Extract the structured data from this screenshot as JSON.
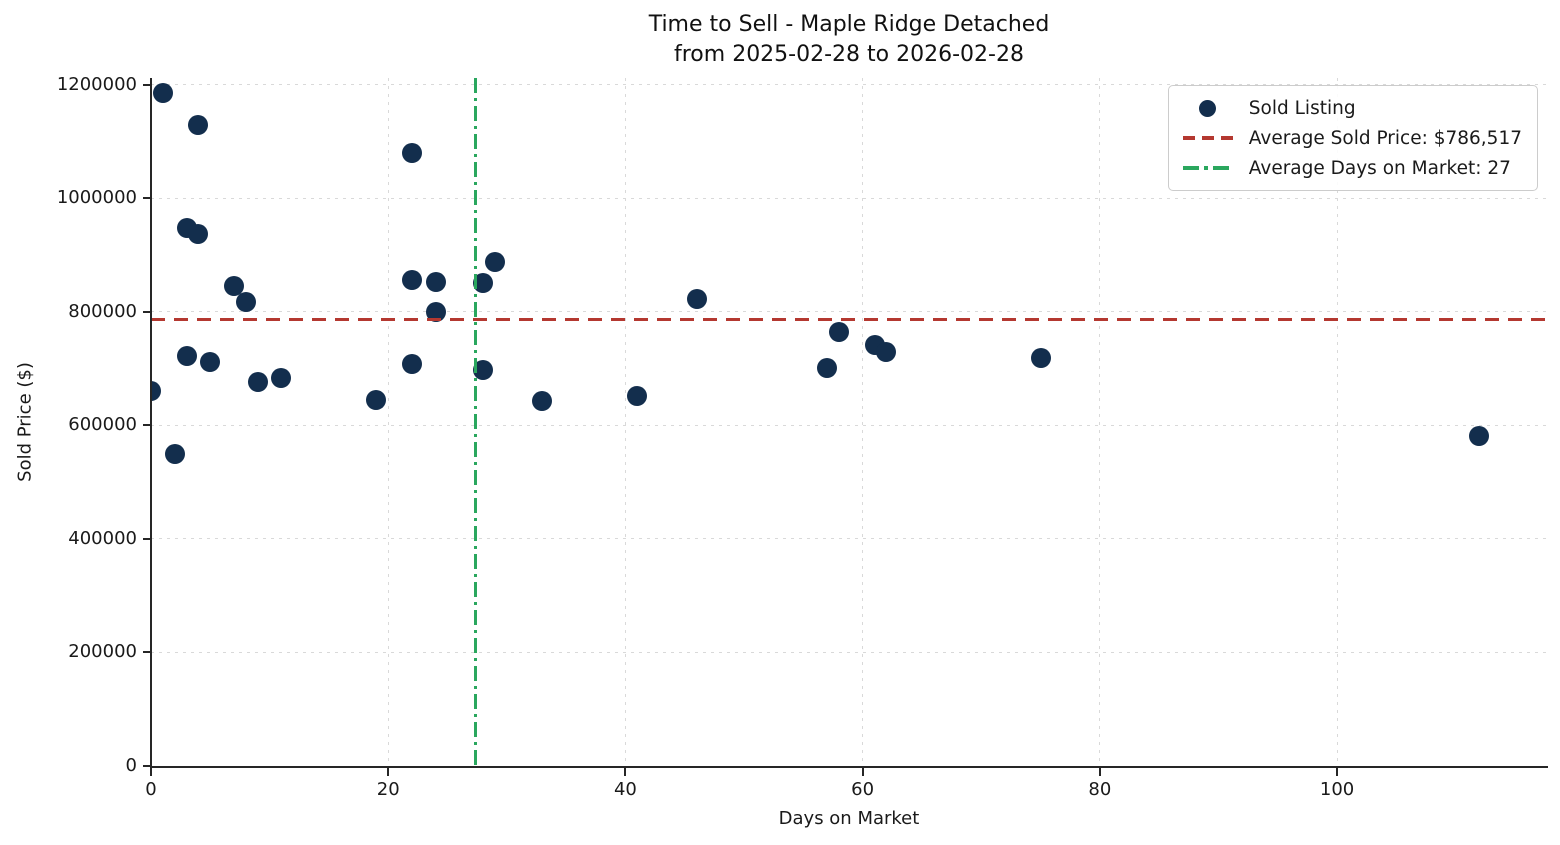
{
  "title": {
    "line1": "Time to Sell - Maple Ridge Detached",
    "line2": "from 2025-02-28 to 2026-02-28"
  },
  "chart_data": {
    "type": "scatter",
    "title": "Time to Sell - Maple Ridge Detached from 2025-02-28 to 2026-02-28",
    "xlabel": "Days on Market",
    "ylabel": "Sold Price ($)",
    "xlim": [
      0,
      117.7
    ],
    "ylim": [
      0,
      1212000
    ],
    "x_ticks": [
      0,
      20,
      40,
      60,
      80,
      100
    ],
    "y_ticks": [
      0,
      200000,
      400000,
      600000,
      800000,
      1000000,
      1200000
    ],
    "grid": true,
    "legend_position": "upper right",
    "series": [
      {
        "name": "Sold Listing",
        "type": "scatter",
        "color": "#132e4d",
        "points": [
          [
            0,
            660000
          ],
          [
            1,
            1185000
          ],
          [
            2,
            549000
          ],
          [
            3,
            948000
          ],
          [
            3,
            723000
          ],
          [
            4,
            1130000
          ],
          [
            4,
            938000
          ],
          [
            5,
            711000
          ],
          [
            7,
            845000
          ],
          [
            8,
            817000
          ],
          [
            9,
            677000
          ],
          [
            11,
            683000
          ],
          [
            19,
            644000
          ],
          [
            22,
            1079000
          ],
          [
            22,
            857000
          ],
          [
            22,
            708000
          ],
          [
            24,
            852000
          ],
          [
            24,
            800000
          ],
          [
            28,
            850000
          ],
          [
            28,
            697000
          ],
          [
            29,
            888000
          ],
          [
            33,
            643000
          ],
          [
            41,
            652000
          ],
          [
            46,
            822000
          ],
          [
            57,
            702000
          ],
          [
            58,
            765000
          ],
          [
            61,
            741000
          ],
          [
            62,
            730000
          ],
          [
            75,
            718000
          ],
          [
            112,
            581000
          ]
        ]
      },
      {
        "name": "Average Sold Price: $786,517",
        "type": "hline",
        "y": 786517,
        "color": "#b43830",
        "style": "dashed"
      },
      {
        "name": "Average Days on Market: 27",
        "type": "vline",
        "x": 27.33,
        "color": "#2aa75e",
        "style": "dashdot"
      }
    ]
  },
  "legend": {
    "items": [
      {
        "label": "Sold Listing",
        "marker": "navy-dot"
      },
      {
        "label": "Average Sold Price: $786,517",
        "marker": "red-dashed-line"
      },
      {
        "label": "Average Days on Market: 27",
        "marker": "green-dashdot-line"
      }
    ]
  },
  "colors": {
    "point": "#132e4d",
    "avg_price_line": "#b43830",
    "avg_days_line": "#2aa75e",
    "grid": "#d9d9d9",
    "axis": "#262626",
    "text": "#1a1a1a"
  }
}
